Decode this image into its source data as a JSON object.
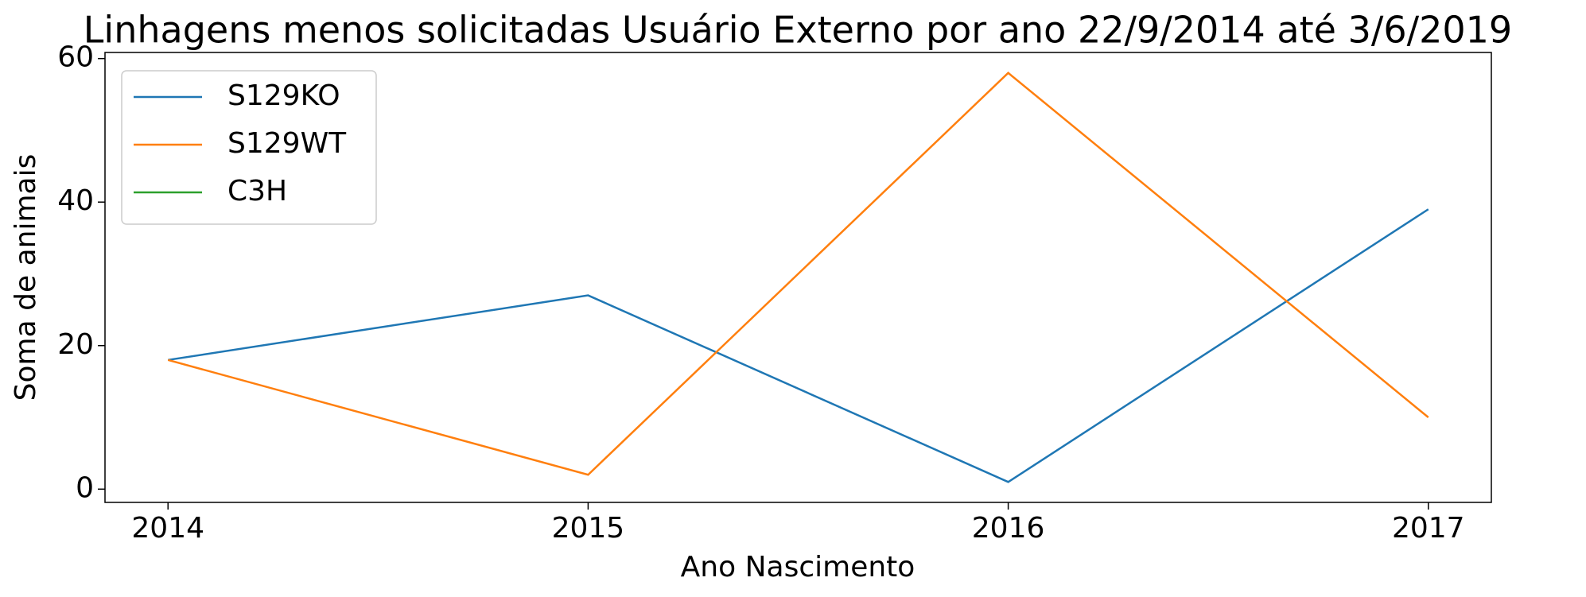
{
  "chart_data": {
    "type": "line",
    "title": "Linhagens menos solicitadas Usuário Externo por ano 22/9/2014 até 3/6/2019",
    "x_label": "Ano Nascimento",
    "y_label": "Soma de animais",
    "x": [
      2014,
      2015,
      2016,
      2017
    ],
    "series": [
      {
        "name": "S129KO",
        "color": "#1f77b4",
        "values": [
          18,
          27,
          1,
          39
        ]
      },
      {
        "name": "S129WT",
        "color": "#ff7f0e",
        "values": [
          18,
          2,
          58,
          10
        ]
      },
      {
        "name": "C3H",
        "color": "#2ca02c",
        "values": [
          null,
          null,
          null,
          null
        ]
      }
    ],
    "xlim": [
      2013.85,
      2017.15
    ],
    "xticks": [
      2014,
      2015,
      2016,
      2017
    ],
    "ylim": [
      -1.85,
      60.85
    ],
    "yticks": [
      0,
      20,
      40,
      60
    ],
    "legend": "upper left"
  }
}
